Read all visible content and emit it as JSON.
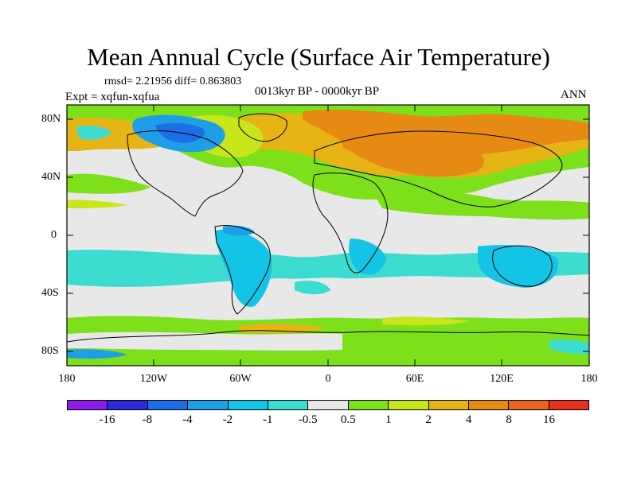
{
  "title": "Mean Annual Cycle (Surface Air Temperature)",
  "stats": "rmsd= 2.21956 diff= 0.863803",
  "experiment": "Expt = xqfun-xqfua",
  "period": "0013kyr BP - 0000kyr BP",
  "season": "ANN",
  "axes": {
    "lat_ticks": [
      "80N",
      "40N",
      "0",
      "40S",
      "80S"
    ],
    "lon_ticks": [
      "180",
      "120W",
      "60W",
      "0",
      "60E",
      "120E",
      "180"
    ]
  },
  "legend": {
    "labels": [
      "-16",
      "-8",
      "-4",
      "-2",
      "-1",
      "-0.5",
      "0.5",
      "1",
      "2",
      "4",
      "8",
      "16"
    ],
    "colors": [
      "#8a1ee8",
      "#2a2ad6",
      "#1c6ee6",
      "#1e9ee6",
      "#14c4e6",
      "#3cdcd0",
      "#e8e8e8",
      "#7ee01a",
      "#c8e61a",
      "#e6b414",
      "#e68a14",
      "#e6641e",
      "#e6321e"
    ]
  },
  "colors": {
    "background": "#e8e8e8",
    "coast": "#000000"
  }
}
